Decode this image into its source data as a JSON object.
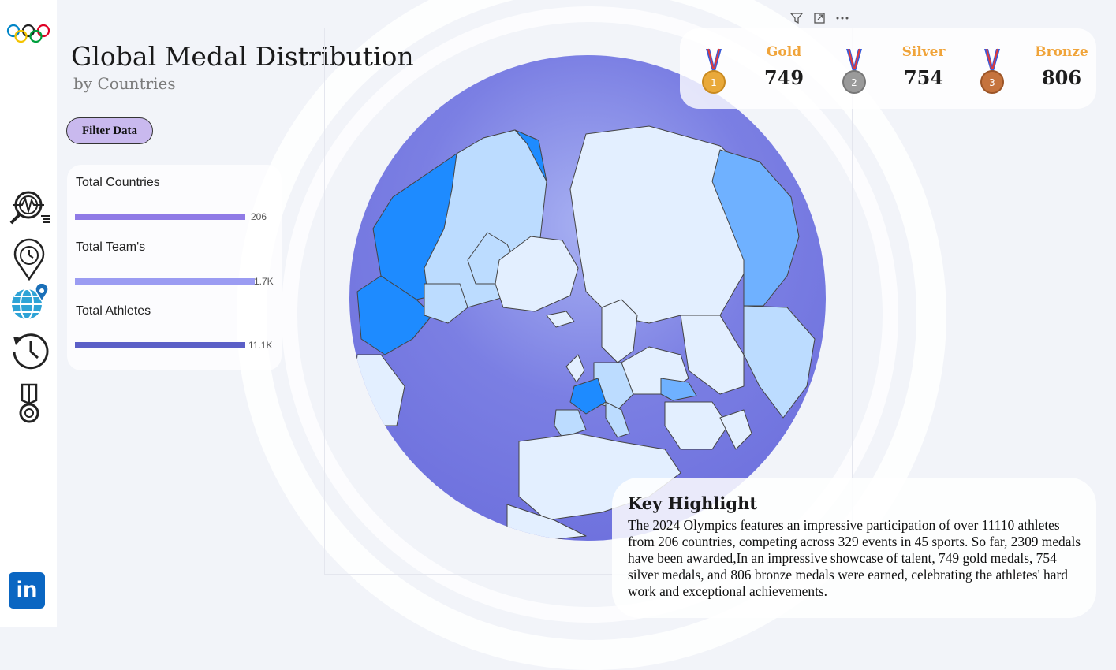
{
  "header": {
    "title": "Global Medal Distribution",
    "subtitle": "by Countries"
  },
  "filter_button": {
    "label": "Filter Data"
  },
  "stats": [
    {
      "label": "Total Countries",
      "value": "206",
      "fill_fraction": 0.99,
      "color": "#8f7ae6"
    },
    {
      "label": "Total Team's",
      "value": "1.7K",
      "fill_fraction": 1.0,
      "color": "#9b9cf2"
    },
    {
      "label": "Total Athletes",
      "value": "11.1K",
      "fill_fraction": 0.99,
      "color": "#5b5fc7"
    }
  ],
  "medals": {
    "gold": {
      "label": "Gold",
      "count": "749",
      "number": "1",
      "color": "#e9a93a"
    },
    "silver": {
      "label": "Silver",
      "count": "754",
      "number": "2",
      "color": "#9a9a9a"
    },
    "bronze": {
      "label": "Bronze",
      "count": "806",
      "number": "3",
      "color": "#c5733d"
    }
  },
  "key_highlight": {
    "title": "Key Highlight",
    "text": "The 2024 Olympics features an impressive participation of over 11110 athletes from 206 countries, competing across 329 events in 45 sports. So far, 2309 medals have been awarded,In an impressive showcase of talent, 749 gold medals, 754 silver medals, and 806 bronze medals were earned, celebrating the athletes' hard work and exceptional achievements."
  },
  "sidebar": {
    "items": [
      {
        "icon": "data-search-icon"
      },
      {
        "icon": "location-clock-icon"
      },
      {
        "icon": "globe-pin-icon"
      },
      {
        "icon": "history-icon"
      },
      {
        "icon": "medal-icon"
      }
    ],
    "footer_icon": "linkedin-icon"
  },
  "map": {
    "projection": "orthographic-north-pole",
    "ocean_color": "#7b7fe3",
    "land_color": "#e3efff",
    "highlight_colors": [
      "#1e8bff",
      "#6fb1ff",
      "#bcdcff"
    ]
  },
  "visual_toolbar": {
    "icons": [
      "filter-icon",
      "focus-mode-icon",
      "more-options-icon"
    ]
  },
  "colors": {
    "accent": "#c9b9ee",
    "medal_label": "#f0a43a",
    "linkedin": "#0a66c2"
  }
}
